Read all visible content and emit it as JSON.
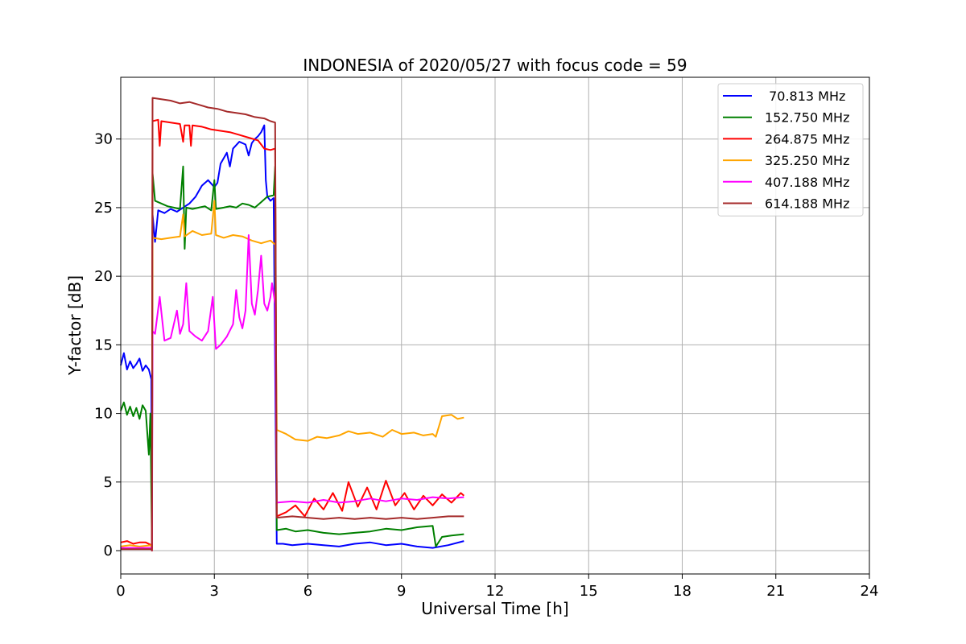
{
  "chart_data": {
    "type": "line",
    "title": "INDONESIA of 2020/05/27 with focus code = 59",
    "xlabel": "Universal Time [h]",
    "ylabel": "Y-factor [dB]",
    "xlim": [
      0,
      24
    ],
    "ylim": [
      -1.7,
      34.5
    ],
    "xticks": [
      0,
      3,
      6,
      9,
      12,
      15,
      18,
      21,
      24
    ],
    "yticks": [
      0,
      5,
      10,
      15,
      20,
      25,
      30
    ],
    "grid": true,
    "legend_position": "top-right",
    "series": [
      {
        "name": " 70.813 MHz",
        "color": "#0000ff",
        "points": [
          [
            0,
            13.5
          ],
          [
            0.1,
            14.4
          ],
          [
            0.2,
            13.2
          ],
          [
            0.3,
            13.8
          ],
          [
            0.4,
            13.3
          ],
          [
            0.5,
            13.6
          ],
          [
            0.6,
            14.0
          ],
          [
            0.7,
            13.1
          ],
          [
            0.8,
            13.5
          ],
          [
            0.9,
            13.2
          ],
          [
            0.98,
            12.5
          ],
          [
            1.0,
            0.2
          ],
          [
            1.02,
            24.5
          ],
          [
            1.1,
            22.5
          ],
          [
            1.2,
            24.8
          ],
          [
            1.4,
            24.6
          ],
          [
            1.6,
            24.9
          ],
          [
            1.8,
            24.7
          ],
          [
            2.0,
            25.0
          ],
          [
            2.2,
            25.3
          ],
          [
            2.4,
            25.8
          ],
          [
            2.6,
            26.6
          ],
          [
            2.8,
            27.0
          ],
          [
            3.0,
            26.5
          ],
          [
            3.1,
            26.8
          ],
          [
            3.2,
            28.2
          ],
          [
            3.4,
            29.0
          ],
          [
            3.5,
            28.0
          ],
          [
            3.6,
            29.3
          ],
          [
            3.8,
            29.8
          ],
          [
            4.0,
            29.6
          ],
          [
            4.1,
            28.8
          ],
          [
            4.2,
            29.7
          ],
          [
            4.3,
            30.0
          ],
          [
            4.4,
            30.2
          ],
          [
            4.5,
            30.5
          ],
          [
            4.6,
            31.0
          ],
          [
            4.65,
            27.0
          ],
          [
            4.7,
            25.8
          ],
          [
            4.8,
            25.5
          ],
          [
            4.9,
            25.7
          ],
          [
            5.0,
            0.5
          ],
          [
            5.2,
            0.5
          ],
          [
            5.5,
            0.4
          ],
          [
            6.0,
            0.5
          ],
          [
            6.5,
            0.4
          ],
          [
            7.0,
            0.3
          ],
          [
            7.5,
            0.5
          ],
          [
            8.0,
            0.6
          ],
          [
            8.5,
            0.4
          ],
          [
            9.0,
            0.5
          ],
          [
            9.5,
            0.3
          ],
          [
            10.0,
            0.2
          ],
          [
            10.5,
            0.4
          ],
          [
            11.0,
            0.7
          ]
        ]
      },
      {
        "name": "152.750 MHz",
        "color": "#008000",
        "points": [
          [
            0,
            10.2
          ],
          [
            0.1,
            10.8
          ],
          [
            0.2,
            9.9
          ],
          [
            0.3,
            10.5
          ],
          [
            0.4,
            9.8
          ],
          [
            0.5,
            10.4
          ],
          [
            0.6,
            9.6
          ],
          [
            0.7,
            10.6
          ],
          [
            0.8,
            10.2
          ],
          [
            0.9,
            7.0
          ],
          [
            0.95,
            10.0
          ],
          [
            1.0,
            0.2
          ],
          [
            1.02,
            27.5
          ],
          [
            1.1,
            25.5
          ],
          [
            1.3,
            25.3
          ],
          [
            1.5,
            25.1
          ],
          [
            1.7,
            25.0
          ],
          [
            1.9,
            24.9
          ],
          [
            2.0,
            28.0
          ],
          [
            2.05,
            22.0
          ],
          [
            2.1,
            25.0
          ],
          [
            2.3,
            24.9
          ],
          [
            2.5,
            25.0
          ],
          [
            2.7,
            25.1
          ],
          [
            2.9,
            24.8
          ],
          [
            3.0,
            27.0
          ],
          [
            3.05,
            24.9
          ],
          [
            3.3,
            25.0
          ],
          [
            3.5,
            25.1
          ],
          [
            3.7,
            25.0
          ],
          [
            3.9,
            25.3
          ],
          [
            4.1,
            25.2
          ],
          [
            4.3,
            25.0
          ],
          [
            4.5,
            25.4
          ],
          [
            4.7,
            25.8
          ],
          [
            4.9,
            25.9
          ],
          [
            4.95,
            28.0
          ],
          [
            5.0,
            1.5
          ],
          [
            5.3,
            1.6
          ],
          [
            5.6,
            1.4
          ],
          [
            6.0,
            1.5
          ],
          [
            6.5,
            1.3
          ],
          [
            7.0,
            1.2
          ],
          [
            7.5,
            1.3
          ],
          [
            8.0,
            1.4
          ],
          [
            8.5,
            1.6
          ],
          [
            9.0,
            1.5
          ],
          [
            9.5,
            1.7
          ],
          [
            10.0,
            1.8
          ],
          [
            10.1,
            0.3
          ],
          [
            10.3,
            1.0
          ],
          [
            10.6,
            1.1
          ],
          [
            11.0,
            1.2
          ]
        ]
      },
      {
        "name": "264.875 MHz",
        "color": "#ff0000",
        "points": [
          [
            0,
            0.6
          ],
          [
            0.2,
            0.7
          ],
          [
            0.4,
            0.5
          ],
          [
            0.6,
            0.6
          ],
          [
            0.8,
            0.6
          ],
          [
            0.98,
            0.4
          ],
          [
            1.0,
            0.0
          ],
          [
            1.02,
            31.3
          ],
          [
            1.2,
            31.4
          ],
          [
            1.25,
            29.5
          ],
          [
            1.3,
            31.3
          ],
          [
            1.6,
            31.2
          ],
          [
            1.9,
            31.1
          ],
          [
            2.0,
            29.8
          ],
          [
            2.05,
            31.0
          ],
          [
            2.2,
            31.0
          ],
          [
            2.25,
            29.5
          ],
          [
            2.3,
            31.0
          ],
          [
            2.6,
            30.9
          ],
          [
            2.9,
            30.7
          ],
          [
            3.2,
            30.6
          ],
          [
            3.5,
            30.5
          ],
          [
            3.8,
            30.3
          ],
          [
            4.1,
            30.1
          ],
          [
            4.4,
            29.9
          ],
          [
            4.6,
            29.3
          ],
          [
            4.8,
            29.2
          ],
          [
            4.95,
            29.3
          ],
          [
            5.0,
            2.5
          ],
          [
            5.3,
            2.8
          ],
          [
            5.6,
            3.3
          ],
          [
            5.9,
            2.5
          ],
          [
            6.2,
            3.8
          ],
          [
            6.5,
            3.0
          ],
          [
            6.8,
            4.2
          ],
          [
            7.1,
            2.9
          ],
          [
            7.3,
            5.0
          ],
          [
            7.6,
            3.2
          ],
          [
            7.9,
            4.6
          ],
          [
            8.2,
            3.0
          ],
          [
            8.5,
            5.1
          ],
          [
            8.8,
            3.3
          ],
          [
            9.1,
            4.2
          ],
          [
            9.4,
            3.0
          ],
          [
            9.7,
            4.0
          ],
          [
            10.0,
            3.3
          ],
          [
            10.3,
            4.1
          ],
          [
            10.6,
            3.5
          ],
          [
            10.9,
            4.2
          ],
          [
            11.0,
            4.0
          ]
        ]
      },
      {
        "name": "325.250 MHz",
        "color": "#ffa500",
        "points": [
          [
            0,
            0.3
          ],
          [
            0.3,
            0.4
          ],
          [
            0.6,
            0.3
          ],
          [
            0.98,
            0.4
          ],
          [
            1.0,
            0.0
          ],
          [
            1.02,
            22.8
          ],
          [
            1.3,
            22.7
          ],
          [
            1.6,
            22.8
          ],
          [
            1.9,
            22.9
          ],
          [
            2.0,
            24.5
          ],
          [
            2.05,
            22.9
          ],
          [
            2.3,
            23.3
          ],
          [
            2.6,
            23.0
          ],
          [
            2.9,
            23.1
          ],
          [
            3.0,
            25.5
          ],
          [
            3.05,
            23.0
          ],
          [
            3.3,
            22.8
          ],
          [
            3.6,
            23.0
          ],
          [
            3.9,
            22.9
          ],
          [
            4.2,
            22.6
          ],
          [
            4.5,
            22.4
          ],
          [
            4.8,
            22.6
          ],
          [
            4.95,
            22.3
          ],
          [
            5.0,
            8.8
          ],
          [
            5.3,
            8.5
          ],
          [
            5.6,
            8.1
          ],
          [
            6.0,
            8.0
          ],
          [
            6.3,
            8.3
          ],
          [
            6.6,
            8.2
          ],
          [
            7.0,
            8.4
          ],
          [
            7.3,
            8.7
          ],
          [
            7.6,
            8.5
          ],
          [
            8.0,
            8.6
          ],
          [
            8.4,
            8.3
          ],
          [
            8.7,
            8.8
          ],
          [
            9.0,
            8.5
          ],
          [
            9.4,
            8.6
          ],
          [
            9.7,
            8.4
          ],
          [
            10.0,
            8.5
          ],
          [
            10.1,
            8.3
          ],
          [
            10.3,
            9.8
          ],
          [
            10.6,
            9.9
          ],
          [
            10.8,
            9.6
          ],
          [
            11.0,
            9.7
          ]
        ]
      },
      {
        "name": "407.188 MHz",
        "color": "#ff00ff",
        "points": [
          [
            0,
            0.2
          ],
          [
            0.5,
            0.2
          ],
          [
            0.98,
            0.2
          ],
          [
            1.0,
            0.0
          ],
          [
            1.02,
            16.0
          ],
          [
            1.1,
            15.8
          ],
          [
            1.25,
            18.5
          ],
          [
            1.4,
            15.3
          ],
          [
            1.6,
            15.5
          ],
          [
            1.8,
            17.5
          ],
          [
            1.9,
            15.8
          ],
          [
            2.0,
            16.5
          ],
          [
            2.1,
            19.5
          ],
          [
            2.2,
            16.0
          ],
          [
            2.4,
            15.6
          ],
          [
            2.6,
            15.3
          ],
          [
            2.8,
            16.0
          ],
          [
            2.95,
            18.5
          ],
          [
            3.05,
            14.7
          ],
          [
            3.2,
            15.0
          ],
          [
            3.4,
            15.6
          ],
          [
            3.6,
            16.5
          ],
          [
            3.7,
            19.0
          ],
          [
            3.8,
            17.0
          ],
          [
            3.9,
            16.2
          ],
          [
            4.0,
            17.5
          ],
          [
            4.1,
            23.0
          ],
          [
            4.2,
            18.0
          ],
          [
            4.3,
            17.2
          ],
          [
            4.4,
            19.0
          ],
          [
            4.5,
            21.5
          ],
          [
            4.6,
            18.0
          ],
          [
            4.7,
            17.5
          ],
          [
            4.8,
            18.5
          ],
          [
            4.85,
            19.5
          ],
          [
            4.95,
            18.0
          ],
          [
            5.0,
            3.5
          ],
          [
            5.5,
            3.6
          ],
          [
            6.0,
            3.5
          ],
          [
            6.5,
            3.7
          ],
          [
            7.0,
            3.5
          ],
          [
            7.5,
            3.6
          ],
          [
            8.0,
            3.8
          ],
          [
            8.5,
            3.6
          ],
          [
            9.0,
            3.8
          ],
          [
            9.5,
            3.7
          ],
          [
            10.0,
            3.9
          ],
          [
            10.5,
            3.8
          ],
          [
            11.0,
            3.9
          ]
        ]
      },
      {
        "name": "614.188 MHz",
        "color": "#a52a2a",
        "points": [
          [
            0,
            0.1
          ],
          [
            0.5,
            0.1
          ],
          [
            0.98,
            0.1
          ],
          [
            1.0,
            0.0
          ],
          [
            1.02,
            33.0
          ],
          [
            1.3,
            32.9
          ],
          [
            1.6,
            32.8
          ],
          [
            1.9,
            32.6
          ],
          [
            2.2,
            32.7
          ],
          [
            2.5,
            32.5
          ],
          [
            2.8,
            32.3
          ],
          [
            3.1,
            32.2
          ],
          [
            3.4,
            32.0
          ],
          [
            3.7,
            31.9
          ],
          [
            4.0,
            31.8
          ],
          [
            4.3,
            31.6
          ],
          [
            4.6,
            31.5
          ],
          [
            4.8,
            31.3
          ],
          [
            4.95,
            31.2
          ],
          [
            5.0,
            2.4
          ],
          [
            5.5,
            2.5
          ],
          [
            6.0,
            2.4
          ],
          [
            6.5,
            2.3
          ],
          [
            7.0,
            2.4
          ],
          [
            7.5,
            2.3
          ],
          [
            8.0,
            2.4
          ],
          [
            8.5,
            2.3
          ],
          [
            9.0,
            2.4
          ],
          [
            9.5,
            2.3
          ],
          [
            10.0,
            2.4
          ],
          [
            10.5,
            2.5
          ],
          [
            11.0,
            2.5
          ]
        ]
      }
    ]
  }
}
